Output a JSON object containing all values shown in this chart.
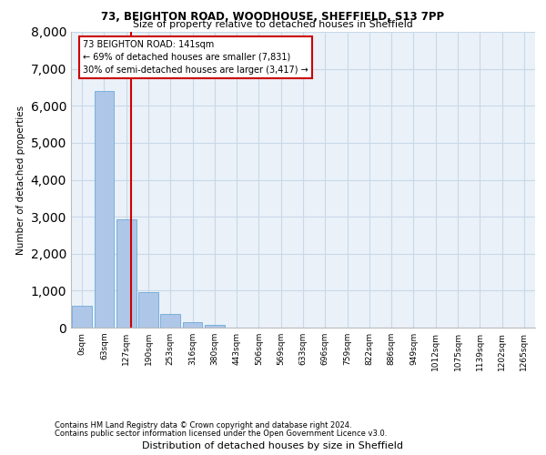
{
  "title_line1": "73, BEIGHTON ROAD, WOODHOUSE, SHEFFIELD, S13 7PP",
  "title_line2": "Size of property relative to detached houses in Sheffield",
  "xlabel": "Distribution of detached houses by size in Sheffield",
  "ylabel": "Number of detached properties",
  "footnote_line1": "Contains HM Land Registry data © Crown copyright and database right 2024.",
  "footnote_line2": "Contains public sector information licensed under the Open Government Licence v3.0.",
  "bar_labels": [
    "0sqm",
    "63sqm",
    "127sqm",
    "190sqm",
    "253sqm",
    "316sqm",
    "380sqm",
    "443sqm",
    "506sqm",
    "569sqm",
    "633sqm",
    "696sqm",
    "759sqm",
    "822sqm",
    "886sqm",
    "949sqm",
    "1012sqm",
    "1075sqm",
    "1139sqm",
    "1202sqm",
    "1265sqm"
  ],
  "bar_values": [
    590,
    6400,
    2930,
    960,
    360,
    145,
    65,
    0,
    0,
    0,
    0,
    0,
    0,
    0,
    0,
    0,
    0,
    0,
    0,
    0,
    0
  ],
  "bar_color": "#aec6e8",
  "bar_edge_color": "#5a9fd4",
  "property_label": "73 BEIGHTON ROAD: 141sqm",
  "annotation_line2": "← 69% of detached houses are smaller (7,831)",
  "annotation_line3": "30% of semi-detached houses are larger (3,417) →",
  "vline_color": "#cc0000",
  "ylim": [
    0,
    8000
  ],
  "yticks": [
    0,
    1000,
    2000,
    3000,
    4000,
    5000,
    6000,
    7000,
    8000
  ],
  "grid_color": "#c8d8e8",
  "background_color": "#eaf1f8",
  "bar_width": 0.9
}
